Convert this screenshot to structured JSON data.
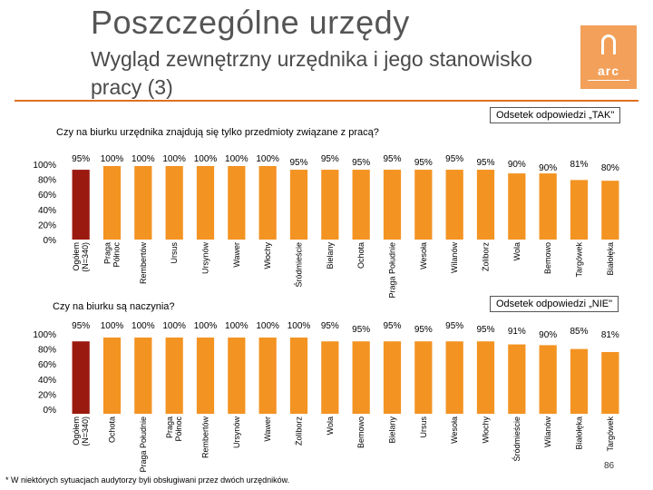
{
  "slide": {
    "title": "Poszczególne urzędy",
    "subtitle": "Wygląd zewnętrzny urzędnika i jego stanowisko pracy (3)",
    "footnote": "* W niektórych sytuacjach audytorzy byli obsługiwani przez dwóch urzędników.",
    "page_number": "86",
    "logo_text": "arc"
  },
  "colors": {
    "highlight": "#9b1a10",
    "bar": "#f39322",
    "accent": "#e07020"
  },
  "chart_data": [
    {
      "type": "bar",
      "title": "Czy na biurku urzędnika znajdują się tylko przedmioty związane z pracą?",
      "legend": "Odsetek odpowiedzi „TAK\"",
      "y_ticks": [
        "100%",
        "80%",
        "60%",
        "40%",
        "20%",
        "0%"
      ],
      "ylim": [
        0,
        100
      ],
      "categories": [
        "Ogółem (N=340)",
        "Praga Północ",
        "Rembertów",
        "Ursus",
        "Ursynów",
        "Wawer",
        "Włochy",
        "Śródmieście",
        "Bielany",
        "Ochota",
        "Praga Południe",
        "Wesoła",
        "Wilanów",
        "Żoliborz",
        "Wola",
        "Bemowo",
        "Targówek",
        "Białołęka"
      ],
      "values": [
        95,
        100,
        100,
        100,
        100,
        100,
        100,
        95,
        95,
        95,
        95,
        95,
        95,
        95,
        90,
        90,
        81,
        80
      ],
      "labels": [
        "95%",
        "100%",
        "100%",
        "100%",
        "100%",
        "100%",
        "100%",
        "95%",
        "95%",
        "95%",
        "95%",
        "95%",
        "95%",
        "95%",
        "90%",
        "90%",
        "81%",
        "80%"
      ]
    },
    {
      "type": "bar",
      "title": "Czy na biurku są naczynia?",
      "legend": "Odsetek odpowiedzi „NIE\"",
      "y_ticks": [
        "100%",
        "80%",
        "60%",
        "40%",
        "20%",
        "0%"
      ],
      "ylim": [
        0,
        100
      ],
      "categories": [
        "Ogółem (N=340)",
        "Ochota",
        "Praga Południe",
        "Praga Północ",
        "Rembertów",
        "Ursynów",
        "Wawer",
        "Żoliborz",
        "Wola",
        "Bemowo",
        "Bielany",
        "Ursus",
        "Wesoła",
        "Włochy",
        "Śródmieście",
        "Wilanów",
        "Białołęka",
        "Targówek"
      ],
      "values": [
        95,
        100,
        100,
        100,
        100,
        100,
        100,
        100,
        95,
        95,
        95,
        95,
        95,
        95,
        91,
        90,
        85,
        81
      ],
      "labels": [
        "95%",
        "100%",
        "100%",
        "100%",
        "100%",
        "100%",
        "100%",
        "100%",
        "95%",
        "95%",
        "95%",
        "95%",
        "95%",
        "95%",
        "91%",
        "90%",
        "85%",
        "81%"
      ]
    }
  ]
}
